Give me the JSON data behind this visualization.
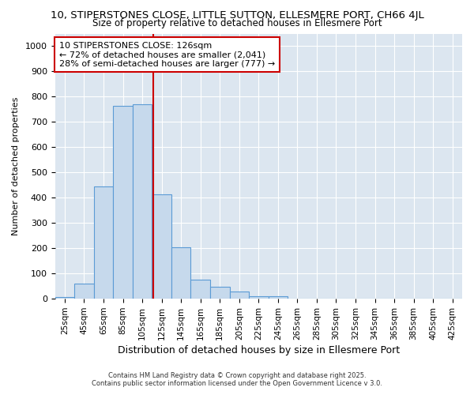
{
  "title1": "10, STIPERSTONES CLOSE, LITTLE SUTTON, ELLESMERE PORT, CH66 4JL",
  "title2": "Size of property relative to detached houses in Ellesmere Port",
  "xlabel": "Distribution of detached houses by size in Ellesmere Port",
  "ylabel": "Number of detached properties",
  "bar_labels": [
    "25sqm",
    "45sqm",
    "65sqm",
    "85sqm",
    "105sqm",
    "125sqm",
    "145sqm",
    "165sqm",
    "185sqm",
    "205sqm",
    "225sqm",
    "245sqm",
    "265sqm",
    "285sqm",
    "305sqm",
    "325sqm",
    "345sqm",
    "365sqm",
    "385sqm",
    "405sqm",
    "425sqm"
  ],
  "bar_values": [
    8,
    60,
    445,
    765,
    770,
    415,
    205,
    75,
    47,
    28,
    10,
    10,
    2,
    0,
    0,
    0,
    0,
    0,
    0,
    0,
    0
  ],
  "bar_color": "#c6d9ec",
  "bar_edge_color": "#5b9bd5",
  "vline_color": "#cc0000",
  "vline_x_index": 5,
  "annotation_text": "10 STIPERSTONES CLOSE: 126sqm\n← 72% of detached houses are smaller (2,041)\n28% of semi-detached houses are larger (777) →",
  "annotation_box_facecolor": "#ffffff",
  "annotation_box_edgecolor": "#cc0000",
  "ylim": [
    0,
    1050
  ],
  "yticks": [
    0,
    100,
    200,
    300,
    400,
    500,
    600,
    700,
    800,
    900,
    1000
  ],
  "fig_facecolor": "#ffffff",
  "ax_facecolor": "#dce6f0",
  "grid_color": "#ffffff",
  "footer1": "Contains HM Land Registry data © Crown copyright and database right 2025.",
  "footer2": "Contains public sector information licensed under the Open Government Licence v 3.0."
}
